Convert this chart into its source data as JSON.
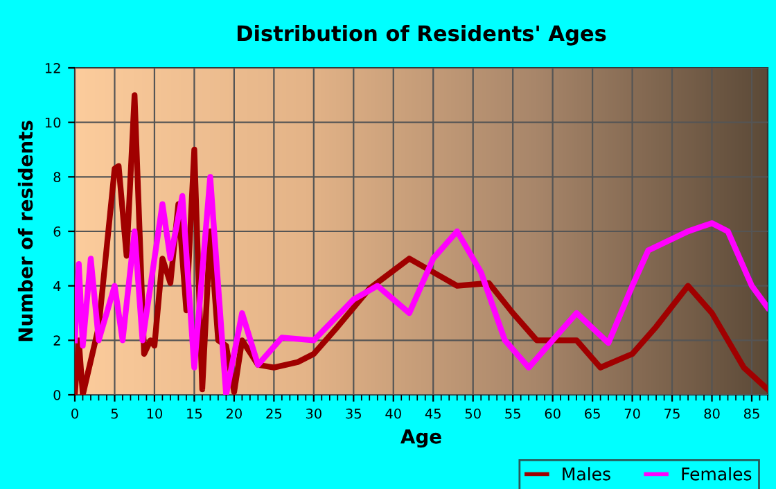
{
  "chart_data": {
    "type": "line",
    "title": "Distribution of Residents' Ages",
    "xlabel": "Age",
    "ylabel": "Number of residents",
    "xlim": [
      0,
      87
    ],
    "xticks": [
      0,
      5,
      10,
      15,
      20,
      25,
      30,
      35,
      40,
      45,
      50,
      55,
      60,
      65,
      70,
      75,
      80,
      85
    ],
    "ylim": [
      0,
      12
    ],
    "yticks": [
      0,
      2,
      4,
      6,
      8,
      10,
      12
    ],
    "grid": true,
    "legend": "bottom right",
    "marker": "none",
    "line_style": "solid",
    "series": [
      {
        "name": "Males",
        "color": "#a00000",
        "x": [
          0,
          0.5,
          1,
          3,
          5,
          5.5,
          6.5,
          7.5,
          8.7,
          9.5,
          10,
          11,
          12,
          13,
          14,
          15,
          16,
          17,
          18,
          19,
          20,
          21,
          23,
          25,
          28,
          30,
          33,
          37,
          42,
          45,
          48,
          52,
          55,
          58,
          60,
          63,
          66,
          70,
          73,
          77,
          80,
          84,
          87
        ],
        "values": [
          0,
          2,
          0,
          2.5,
          8.3,
          8.4,
          5.1,
          11,
          1.5,
          2,
          1.8,
          5,
          4.1,
          7,
          3.1,
          9,
          0.2,
          6,
          2,
          1.8,
          0.1,
          2,
          1.1,
          1,
          1.2,
          1.5,
          2.5,
          3.9,
          5,
          4.5,
          4,
          4.1,
          3,
          2,
          2,
          2,
          1,
          1.5,
          2.5,
          4,
          3,
          1,
          0.2
        ]
      },
      {
        "name": "Females",
        "color": "#ff00ff",
        "x": [
          0,
          0.5,
          1,
          2,
          3,
          5,
          6,
          7.5,
          8.5,
          11,
          12,
          13.5,
          15,
          17,
          19,
          21,
          23,
          26,
          30,
          35,
          38,
          42,
          45,
          48,
          51,
          54,
          57,
          60,
          63,
          67,
          70,
          72,
          77,
          80,
          82,
          85,
          87
        ],
        "values": [
          2,
          4.8,
          1.8,
          5,
          2,
          4,
          2,
          6,
          2,
          7,
          5,
          7.3,
          1,
          8,
          0,
          3,
          1.1,
          2.1,
          2,
          3.5,
          4,
          3,
          5,
          6,
          4.5,
          2,
          1,
          2,
          3,
          1.9,
          4,
          5.3,
          6,
          6.3,
          6,
          4,
          3.2
        ]
      }
    ]
  }
}
